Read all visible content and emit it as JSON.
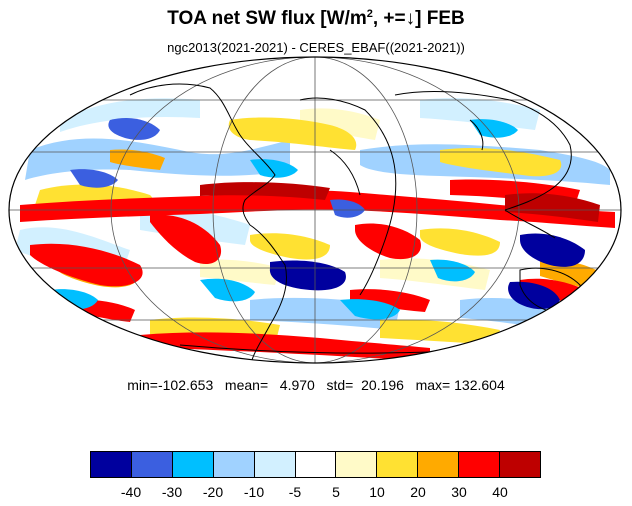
{
  "title": {
    "main": "TOA net SW flux [W/m",
    "sup": "2",
    "tail": ", +=↓]  FEB"
  },
  "subtitle": "ngc2013(2021-2021) - CERES_EBAF((2021-2021))",
  "stats": {
    "text": "min=-102.653   mean=   4.970   std=  20.196   max= 132.604"
  },
  "colorbar": {
    "colors": [
      "#00009e",
      "#3b5fe0",
      "#00bfff",
      "#a0d2ff",
      "#d2f0ff",
      "#ffffff",
      "#fffac8",
      "#ffe132",
      "#ffaa00",
      "#ff0000",
      "#be0000"
    ],
    "labels": [
      "-40",
      "-30",
      "-20",
      "-10",
      "-5",
      "5",
      "10",
      "20",
      "30",
      "40"
    ]
  },
  "map": {
    "projection": "mollweide",
    "gridlines": true,
    "ocean_color": "#ffffff",
    "coastline_color": "#000000"
  }
}
